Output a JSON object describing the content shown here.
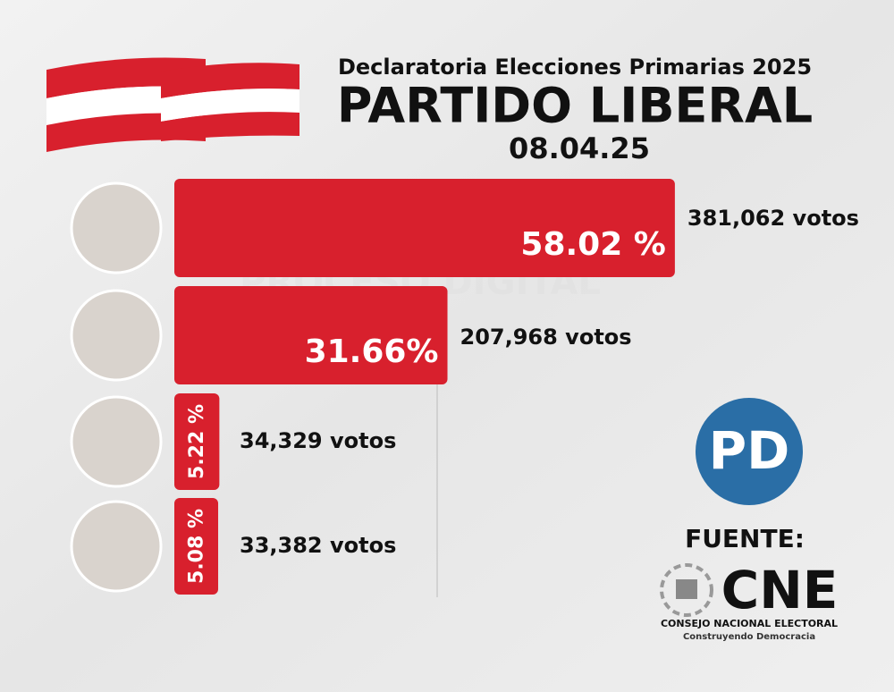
{
  "chart_data": {
    "type": "bar",
    "orientation": "horizontal",
    "title": "PARTIDO LIBERAL",
    "subtitle": "Declaratoria Elecciones Primarias 2025",
    "date": "08.04.25",
    "categories": [
      null,
      null,
      null,
      null
    ],
    "values": [
      58.02,
      31.66,
      5.22,
      5.08
    ],
    "value_labels": [
      "58.02 %",
      "31.66%",
      "5.22 %",
      "5.08 %"
    ],
    "annotations": [
      "381,062 votos",
      "207,968 votos",
      "34,329 votos",
      "33,382 votos"
    ],
    "color": "#d8202d"
  },
  "watermark": "PROCESO DIGITAL",
  "badge": "PD",
  "source": {
    "label": "FUENTE:",
    "name": "CNE",
    "full_name": "CONSEJO NACIONAL ELECTORAL",
    "tagline": "Construyendo Democracia"
  }
}
